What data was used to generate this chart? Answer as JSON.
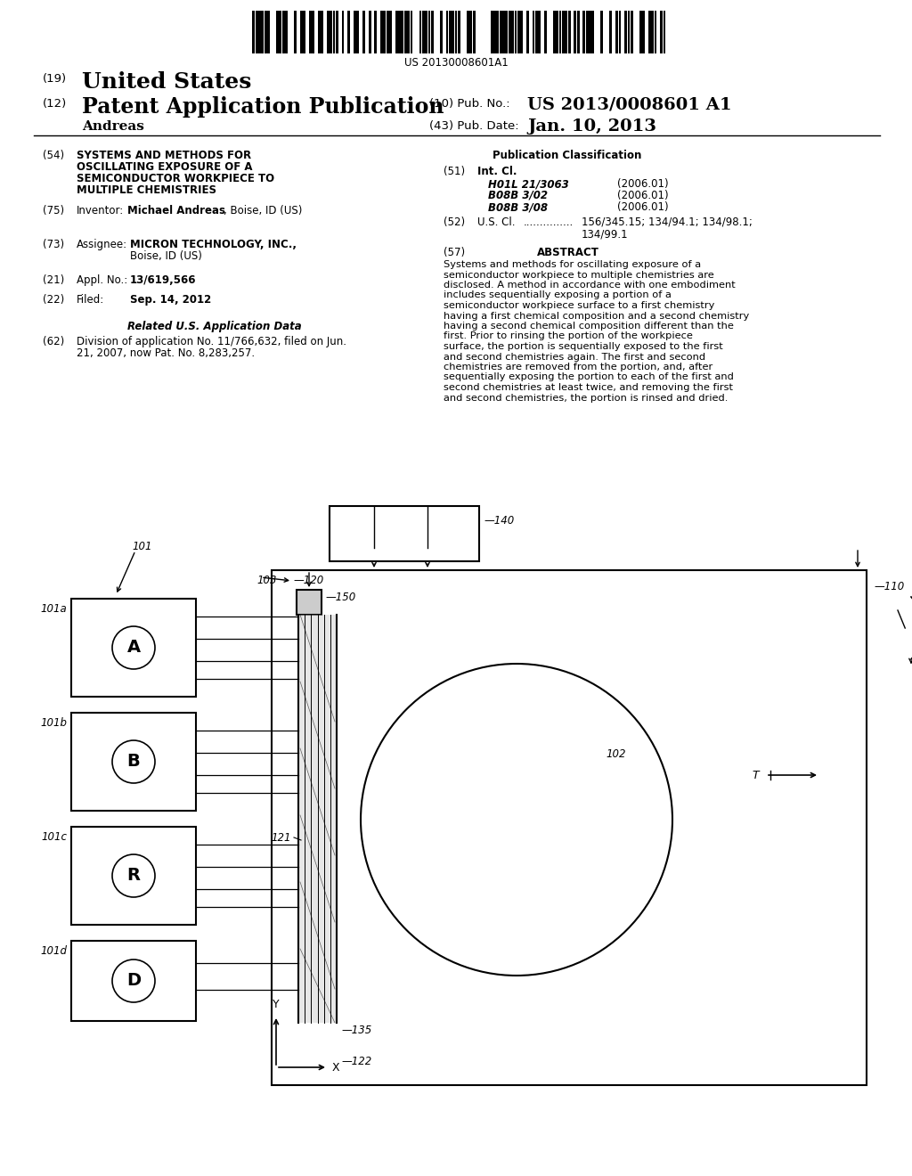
{
  "bg_color": "#ffffff",
  "barcode_text": "US 20130008601A1",
  "abstract_text": "Systems and methods for oscillating exposure of a semiconductor workpiece to multiple chemistries are disclosed. A method in accordance with one embodiment includes sequentially exposing a portion of a semiconductor workpiece surface to a first chemistry having a first chemical composition and a second chemistry having a second chemical composition different than the first. Prior to rinsing the portion of the workpiece surface, the portion is sequentially exposed to the first and second chemistries again. The first and second chemistries are removed from the portion, and, after sequentially exposing the portion to each of the first and second chemistries at least twice, and removing the first and second chemistries, the portion is rinsed and dried.",
  "int_cl_entries": [
    [
      "H01L 21/3063",
      "(2006.01)"
    ],
    [
      "B08B 3/02",
      "(2006.01)"
    ],
    [
      "B08B 3/08",
      "(2006.01)"
    ]
  ]
}
